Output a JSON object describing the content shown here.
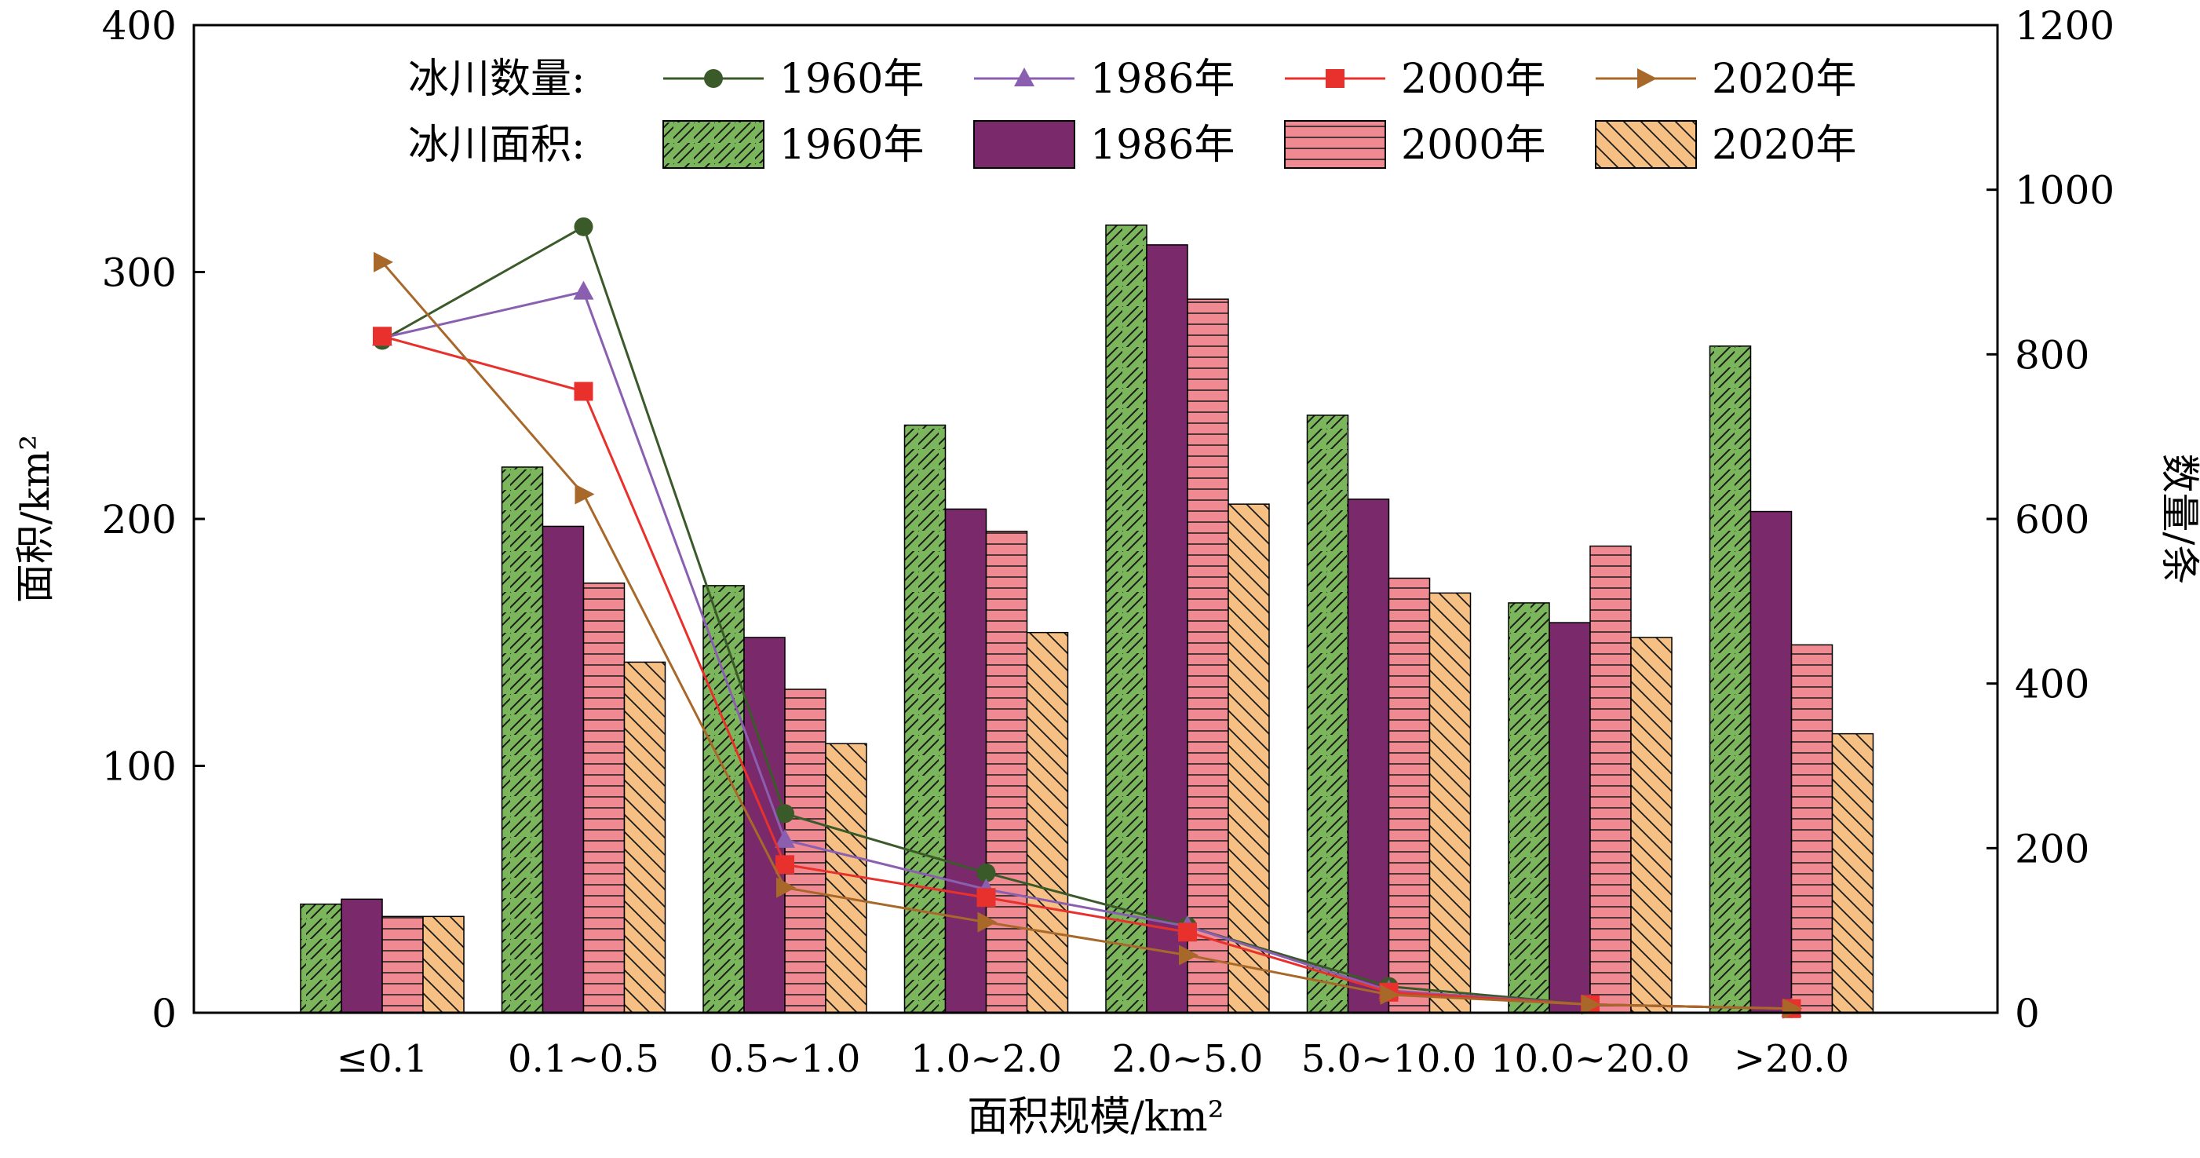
{
  "chart_data": {
    "type": "bar",
    "xlabel": "面积规模/km²",
    "ylabel_left": "面积/km²",
    "ylabel_right": "数量/条",
    "ylim_left": [
      0,
      400
    ],
    "ylim_right": [
      0,
      1200
    ],
    "left_ticks": [
      "0",
      "100",
      "200",
      "300",
      "400"
    ],
    "right_ticks": [
      "0",
      "200",
      "400",
      "600",
      "800",
      "1000",
      "1200"
    ],
    "categories": [
      "≤0.1",
      "0.1~0.5",
      "0.5~1.0",
      "1.0~2.0",
      "2.0~5.0",
      "5.0~10.0",
      "10.0~20.0",
      ">20.0"
    ],
    "legend": {
      "position": "top",
      "count_label": "冰川数量:",
      "area_label": "冰川面积:"
    },
    "bar_series": [
      {
        "name": "1960年",
        "color": "#7CB65C",
        "pattern": "diag-fwd",
        "values": [
          44,
          221,
          173,
          238,
          319,
          242,
          166,
          270
        ]
      },
      {
        "name": "1986年",
        "color": "#7A2A6A",
        "pattern": "solid",
        "values": [
          46,
          197,
          152,
          204,
          311,
          208,
          158,
          203
        ]
      },
      {
        "name": "2000年",
        "color": "#F08A92",
        "pattern": "horizontal",
        "values": [
          39,
          174,
          131,
          195,
          289,
          176,
          189,
          149
        ]
      },
      {
        "name": "2020年",
        "color": "#F6C085",
        "pattern": "diag-back",
        "values": [
          39,
          142,
          109,
          154,
          206,
          170,
          152,
          113
        ]
      }
    ],
    "line_series": [
      {
        "name": "1960年",
        "color": "#3A5A2A",
        "marker": "circle",
        "values": [
          817,
          955,
          242,
          170,
          105,
          32,
          10,
          5
        ]
      },
      {
        "name": "1986年",
        "color": "#8A5FB0",
        "marker": "triangle",
        "values": [
          820,
          876,
          210,
          150,
          105,
          27,
          10,
          5
        ]
      },
      {
        "name": "2000年",
        "color": "#E8302C",
        "marker": "square",
        "values": [
          822,
          755,
          180,
          140,
          98,
          25,
          10,
          5
        ]
      },
      {
        "name": "2020年",
        "color": "#A8682A",
        "marker": "triangle-right",
        "values": [
          912,
          630,
          152,
          110,
          70,
          22,
          10,
          5
        ]
      }
    ]
  }
}
